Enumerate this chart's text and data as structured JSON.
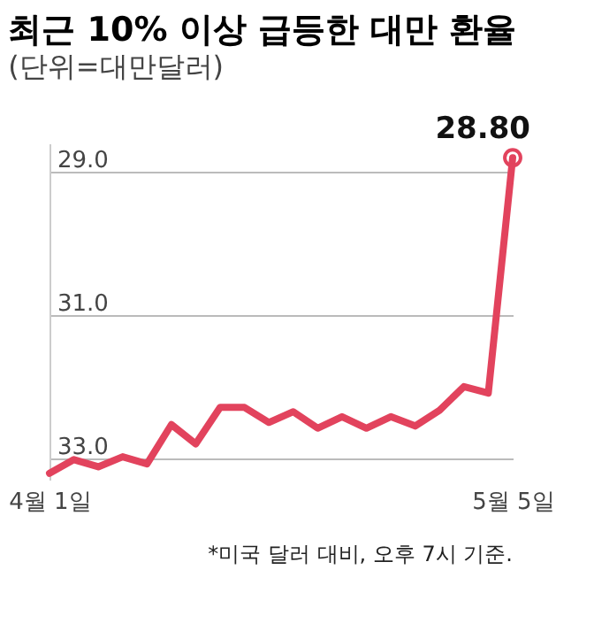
{
  "chart_data": {
    "type": "line",
    "title": "최근 10% 이상 급등한 대만 환율",
    "subtitle": "(단위=대만달러)",
    "categories": [
      "4월 1일",
      null,
      null,
      null,
      null,
      null,
      null,
      null,
      null,
      null,
      null,
      null,
      null,
      null,
      null,
      null,
      null,
      null,
      null,
      "5월 5일"
    ],
    "series": [
      {
        "color": "#e2435d",
        "values": [
          33.21,
          33.02,
          33.12,
          32.98,
          33.08,
          32.53,
          32.8,
          32.29,
          32.29,
          32.5,
          32.35,
          32.58,
          32.42,
          32.58,
          32.42,
          32.55,
          32.33,
          32.0,
          32.09,
          28.8
        ],
        "value_labels": [
          null,
          null,
          null,
          null,
          null,
          null,
          null,
          null,
          null,
          null,
          null,
          null,
          null,
          null,
          null,
          null,
          null,
          null,
          null,
          "28.80"
        ]
      }
    ],
    "ylim": [
      33.3,
      28.6
    ],
    "yticks": [
      {
        "value": 29.0,
        "label": "29.0"
      },
      {
        "value": 31.0,
        "label": "31.0"
      },
      {
        "value": 33.0,
        "label": "33.0"
      }
    ],
    "grid": "y",
    "annotations": [
      "*미국 달러 대비, 오후 7시 기준."
    ]
  }
}
